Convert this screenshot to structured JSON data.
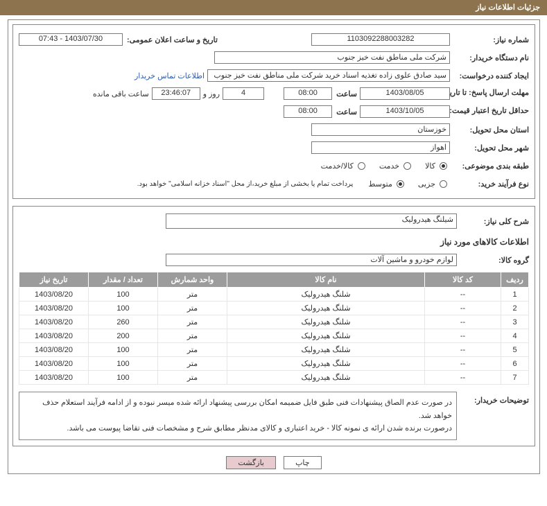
{
  "titlebar": {
    "title": "جزئیات اطلاعات نیاز"
  },
  "fields": {
    "need_number_lbl": "شماره نیاز:",
    "need_number_val": "1103092288003282",
    "announce_dt_lbl": "تاریخ و ساعت اعلان عمومی:",
    "announce_dt_val": "07:43 - 1403/07/30",
    "buyer_lbl": "نام دستگاه خریدار:",
    "buyer_val": "شرکت ملی مناطق نفت خیز جنوب",
    "requester_lbl": "ایجاد کننده درخواست:",
    "requester_val": "سید صادق علوی زاده  تغذیه اسناد خرید  شرکت ملی مناطق نفت خیز جنوب",
    "contact_link": "اطلاعات تماس خریدار",
    "reply_deadline_lbl": "مهلت ارسال پاسخ: تا تاریخ:",
    "time_lbl": "ساعت",
    "days_and_lbl": "روز و",
    "remaining_lbl": "ساعت باقی مانده",
    "reply_deadline_date_val": "1403/08/05",
    "reply_deadline_time_val": "08:00",
    "remaining_days_val": "4",
    "countdown_val": "23:46:07",
    "validity_lbl": "حداقل تاریخ اعتبار قیمت: تا تاریخ:",
    "validity_date_val": "1403/10/05",
    "validity_time_val": "08:00",
    "province_lbl": "استان محل تحویل:",
    "province_val": "خوزستان",
    "city_lbl": "شهر محل تحویل:",
    "city_val": "اهواز",
    "class_lbl": "طبقه بندی موضوعی:",
    "class_goods": "کالا",
    "class_service": "خدمت",
    "class_both": "کالا/خدمت",
    "process_lbl": "نوع فرآیند خرید:",
    "process_partial": "جزیی",
    "process_medium": "متوسط",
    "payment_note": "پرداخت تمام یا بخشی از مبلغ خرید،از محل \"اسناد خزانه اسلامی\" خواهد بود.",
    "summary_lbl": "شرح کلی نیاز:",
    "summary_val": "شیلنگ هیدرولیک",
    "goods_info_hdr": "اطلاعات کالاهای مورد نیاز",
    "group_lbl": "گروه کالا:",
    "group_val": "لوازم خودرو و ماشین آلات",
    "buyer_note_lbl": "توضیحات خریدار:",
    "buyer_note_1": "در صورت عدم الصاق پیشنهادات فنی طبق فایل ضمیمه امکان بررسی پیشنهاد ارائه شده میسر نبوده و از ادامه فرآیند استعلام حذف خواهد شد.",
    "buyer_note_2": "درصورت برنده شدن ارائه ی نمونه کالا - خرید اعتباری و کالای مدنظر مطابق شرح و مشخصات فنی تقاضا پیوست می باشد."
  },
  "table": {
    "headers": {
      "c1": "ردیف",
      "c2": "کد کالا",
      "c3": "نام کالا",
      "c4": "واحد شمارش",
      "c5": "تعداد / مقدار",
      "c6": "تاریخ نیاز"
    },
    "rows": [
      {
        "idx": "1",
        "code": "--",
        "name": "شلنگ هیدرولیک",
        "unit": "متر",
        "qty": "100",
        "date": "1403/08/20"
      },
      {
        "idx": "2",
        "code": "--",
        "name": "شلنگ هیدرولیک",
        "unit": "متر",
        "qty": "100",
        "date": "1403/08/20"
      },
      {
        "idx": "3",
        "code": "--",
        "name": "شلنگ هیدرولیک",
        "unit": "متر",
        "qty": "260",
        "date": "1403/08/20"
      },
      {
        "idx": "4",
        "code": "--",
        "name": "شلنگ هیدرولیک",
        "unit": "متر",
        "qty": "200",
        "date": "1403/08/20"
      },
      {
        "idx": "5",
        "code": "--",
        "name": "شلنگ هیدرولیک",
        "unit": "متر",
        "qty": "100",
        "date": "1403/08/20"
      },
      {
        "idx": "6",
        "code": "--",
        "name": "شلنگ هیدرولیک",
        "unit": "متر",
        "qty": "100",
        "date": "1403/08/20"
      },
      {
        "idx": "7",
        "code": "--",
        "name": "شلنگ هیدرولیک",
        "unit": "متر",
        "qty": "100",
        "date": "1403/08/20"
      }
    ]
  },
  "buttons": {
    "print": "چاپ",
    "back": "بازگشت"
  },
  "theme": {
    "header_bg": "#8d744e",
    "th_bg": "#9c9c9c",
    "back_btn_bg": "#e8cbce",
    "border": "#888888"
  }
}
